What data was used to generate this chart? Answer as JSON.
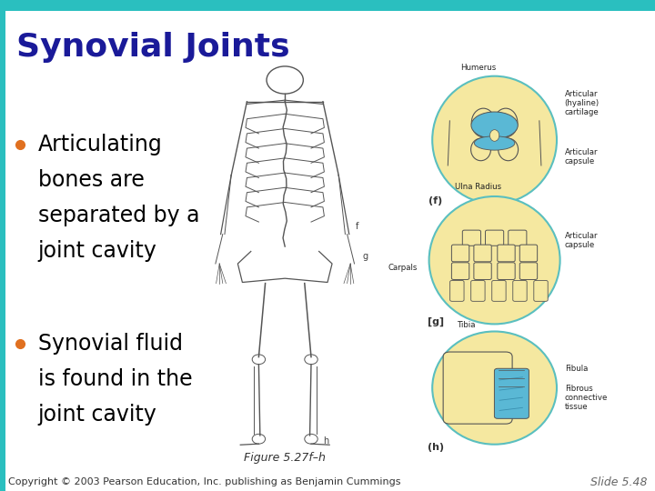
{
  "title": "Synovial Joints",
  "title_color": "#1a1a99",
  "title_fontsize": 26,
  "bullet_lines_1": [
    "Articulating",
    "bones are",
    "separated by a",
    "joint cavity"
  ],
  "bullet_lines_2": [
    "Synovial fluid",
    "is found in the",
    "joint cavity"
  ],
  "bullet_color": "#000000",
  "bullet_dot_color": "#e07020",
  "bullet_fontsize": 17,
  "figure_caption": "Figure 5.27f–h",
  "caption_fontsize": 9,
  "copyright_text": "Copyright © 2003 Pearson Education, Inc. publishing as Benjamin Cummings",
  "slide_number": "Slide 5.48",
  "footer_fontsize": 8,
  "bg_color": "#ffffff",
  "top_bar_color": "#2abfbf",
  "left_bar_color": "#2abfbf",
  "top_bar_height": 0.022,
  "left_bar_width": 0.008,
  "yellow_fill": "#f5e8a0",
  "blue_fill": "#5ab8d5",
  "teal_edge": "#5abfbf",
  "dark_line": "#555555",
  "label_color": "#333333",
  "annot_color": "#222222"
}
